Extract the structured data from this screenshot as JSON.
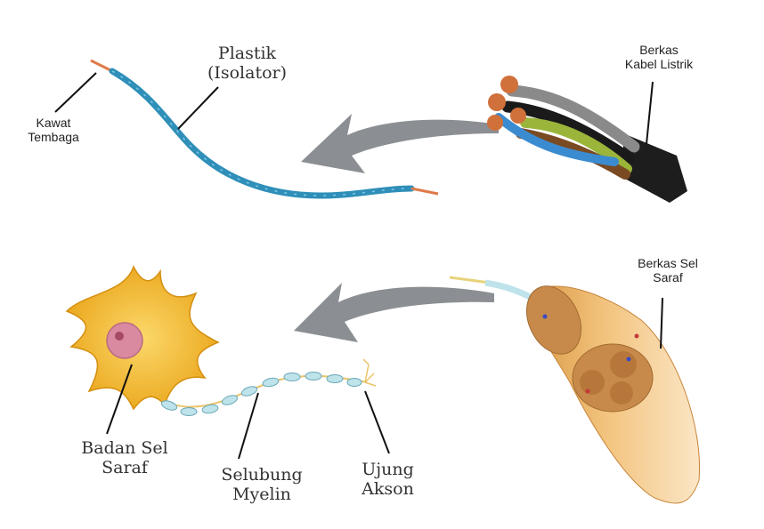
{
  "labels": {
    "plastik": [
      "Plastik",
      "(Isolator)"
    ],
    "kawat": [
      "Kawat",
      "Tembaga"
    ],
    "berkas_kabel": [
      "Berkas",
      "Kabel Listrik"
    ],
    "berkas_sel": [
      "Berkas Sel",
      "Saraf"
    ],
    "badan_sel": [
      "Badan Sel",
      "Saraf"
    ],
    "selubung": [
      "Selubung",
      "Myelin"
    ],
    "ujung": [
      "Ujung",
      "Akson"
    ]
  },
  "colors": {
    "wire_blue": "#2f8fb8",
    "copper": "#e07a4a",
    "arrow_gray": "#8b8f93",
    "neuron_yellow": "#f2b21f",
    "nucleus_pink": "#d98aa0",
    "myelin": "#bfe3ea",
    "nerve_tan": "#e7b36a"
  }
}
